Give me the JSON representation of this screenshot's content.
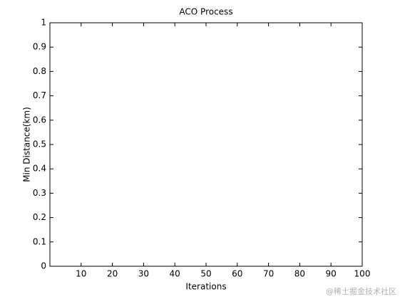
{
  "chart_data": {
    "type": "line",
    "title": "ACO Process",
    "x_label": "Iterations",
    "y_label": "Min Distance(km)",
    "xlim": [
      0,
      100
    ],
    "xticks": [
      10,
      20,
      30,
      40,
      50,
      60,
      70,
      80,
      90,
      100
    ],
    "ylim": [
      0,
      1
    ],
    "yticks": [
      0,
      0.1,
      0.2,
      0.3,
      0.4,
      0.5,
      0.6,
      0.7,
      0.8,
      0.9,
      1
    ],
    "grid": false
  },
  "watermark": "@稀土掘金技术社区"
}
